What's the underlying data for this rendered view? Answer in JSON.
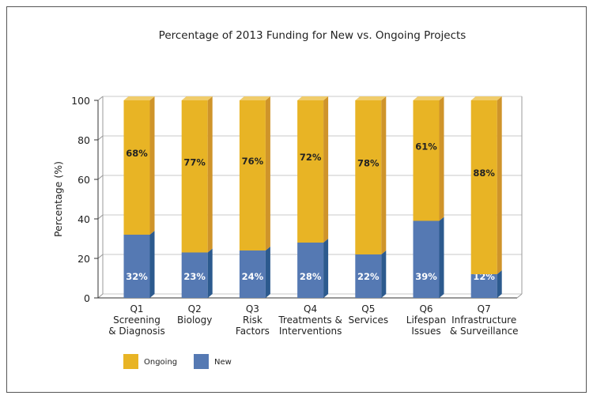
{
  "chart_data": {
    "type": "bar",
    "stacked": true,
    "title": "Percentage of 2013 Funding for New vs. Ongoing Projects",
    "ylabel": "Percentage (%)",
    "xlabel": "",
    "ylim": [
      0,
      100
    ],
    "yticks": [
      0,
      20,
      40,
      60,
      80,
      100
    ],
    "grid": true,
    "legend_position": "bottom-left",
    "categories": [
      [
        "Q1",
        "Screening",
        "& Diagnosis"
      ],
      [
        "Q2",
        "Biology"
      ],
      [
        "Q3",
        "Risk",
        "Factors"
      ],
      [
        "Q4",
        "Treatments &",
        "Interventions"
      ],
      [
        "Q5",
        "Services"
      ],
      [
        "Q6",
        "Lifespan",
        "Issues"
      ],
      [
        "Q7",
        "Infrastructure",
        "& Surveillance"
      ]
    ],
    "series": [
      {
        "name": "New",
        "color": "#5579b3",
        "values": [
          32,
          23,
          24,
          28,
          22,
          39,
          12
        ],
        "labels": [
          "32%",
          "23%",
          "24%",
          "28%",
          "22%",
          "39%",
          "12%"
        ]
      },
      {
        "name": "Ongoing",
        "color": "#e8b425",
        "values": [
          68,
          77,
          76,
          72,
          78,
          61,
          88
        ],
        "labels": [
          "68%",
          "77%",
          "76%",
          "72%",
          "78%",
          "61%",
          "88%"
        ]
      }
    ],
    "legend": [
      "Ongoing",
      "New"
    ]
  }
}
